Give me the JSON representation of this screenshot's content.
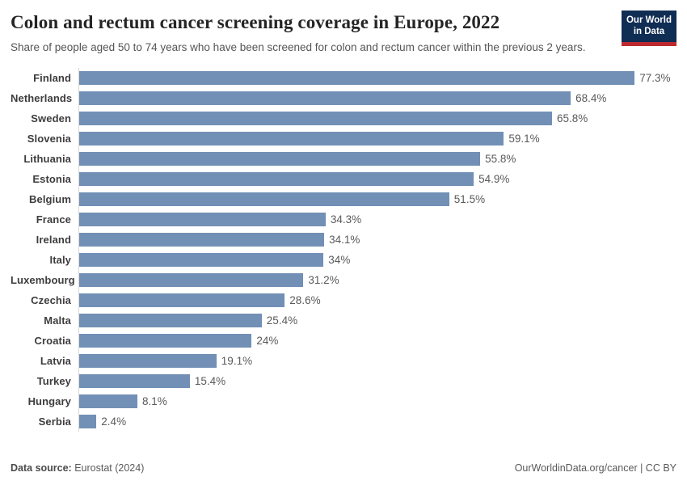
{
  "header": {
    "title": "Colon and rectum cancer screening coverage in Europe, 2022",
    "subtitle": "Share of people aged 50 to 74 years who have been screened for colon and rectum cancer within the previous 2 years.",
    "logo": {
      "line1": "Our World",
      "line2": "in Data"
    }
  },
  "chart_data": {
    "type": "bar",
    "orientation": "horizontal",
    "title": "Colon and rectum cancer screening coverage in Europe, 2022",
    "xlabel": "",
    "ylabel": "",
    "xlim": [
      0,
      83.8
    ],
    "grid": false,
    "legend": false,
    "bar_color": "#7290b5",
    "categories": [
      "Finland",
      "Netherlands",
      "Sweden",
      "Slovenia",
      "Lithuania",
      "Estonia",
      "Belgium",
      "France",
      "Ireland",
      "Italy",
      "Luxembourg",
      "Czechia",
      "Malta",
      "Croatia",
      "Latvia",
      "Turkey",
      "Hungary",
      "Serbia"
    ],
    "values": [
      77.3,
      68.4,
      65.8,
      59.1,
      55.8,
      54.9,
      51.5,
      34.3,
      34.1,
      34,
      31.2,
      28.6,
      25.4,
      24,
      19.1,
      15.4,
      8.1,
      2.4
    ],
    "value_labels": [
      "77.3%",
      "68.4%",
      "65.8%",
      "59.1%",
      "55.8%",
      "54.9%",
      "51.5%",
      "34.3%",
      "34.1%",
      "34%",
      "31.2%",
      "28.6%",
      "25.4%",
      "24%",
      "19.1%",
      "15.4%",
      "8.1%",
      "2.4%"
    ]
  },
  "footer": {
    "source_label": "Data source:",
    "source_value": "Eurostat (2024)",
    "right_text": "OurWorldinData.org/cancer | CC BY"
  }
}
